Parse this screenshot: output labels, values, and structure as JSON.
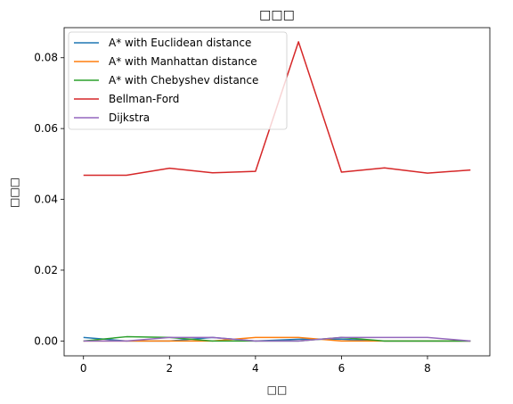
{
  "chart_data": {
    "type": "line",
    "title": "□□□",
    "xlabel": "□□",
    "ylabel": "□□□",
    "xlim": [
      -0.45,
      9.45
    ],
    "ylim": [
      -0.0042,
      0.0885
    ],
    "x_ticks": [
      0,
      2,
      4,
      6,
      8
    ],
    "y_ticks": [
      0.0,
      0.02,
      0.04,
      0.06,
      0.08
    ],
    "y_tick_labels": [
      "0.00",
      "0.02",
      "0.04",
      "0.06",
      "0.08"
    ],
    "legend_position": "top-left",
    "grid": false,
    "x": [
      0,
      1,
      2,
      3,
      4,
      5,
      6,
      7,
      8,
      9
    ],
    "series": [
      {
        "name": "A* with Euclidean distance",
        "color": "#1f77b4",
        "values": [
          0.001,
          0.0,
          0.0,
          0.001,
          0.0,
          0.0005,
          0.0005,
          0.0,
          0.0,
          0.0
        ]
      },
      {
        "name": "A* with Manhattan distance",
        "color": "#ff7f0e",
        "values": [
          0.0,
          0.0,
          0.0,
          0.0,
          0.001,
          0.001,
          0.0,
          0.0,
          0.0,
          0.0
        ]
      },
      {
        "name": "A* with Chebyshev distance",
        "color": "#2ca02c",
        "values": [
          0.0,
          0.0012,
          0.001,
          0.0,
          0.0,
          0.0,
          0.001,
          0.0,
          0.0,
          0.0
        ]
      },
      {
        "name": "Bellman-Ford",
        "color": "#d62728",
        "values": [
          0.0468,
          0.0468,
          0.0488,
          0.0475,
          0.0479,
          0.0845,
          0.0477,
          0.0489,
          0.0474,
          0.0483
        ]
      },
      {
        "name": "Dijkstra",
        "color": "#9467bd",
        "values": [
          0.0,
          0.0,
          0.001,
          0.001,
          0.0,
          0.0,
          0.001,
          0.001,
          0.001,
          0.0
        ]
      }
    ]
  }
}
